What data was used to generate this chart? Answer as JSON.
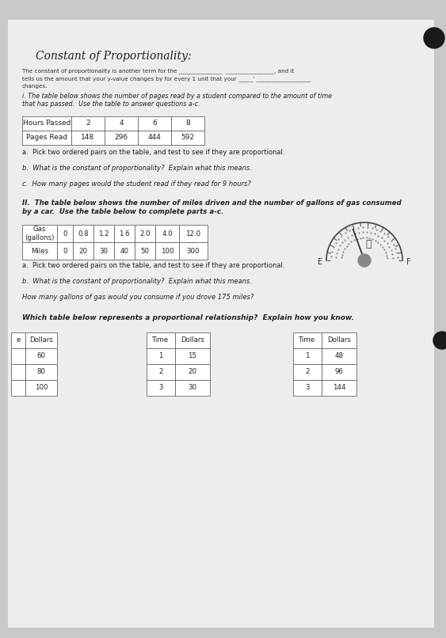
{
  "bg_color": "#c8c8c8",
  "paper_color": "#eeeded",
  "title": "Constant of Proportionality:",
  "sub1": "The constant of proportionality is another term for the _______________  _________________, and it",
  "sub2": "tells us the amount that your y-value changes by for every 1 unit that your _____’ ___________________",
  "sub3": "changes.",
  "sec1_line1": "i. The table below shows the number of pages read by a student compared to the amount of time",
  "sec1_line2": "that has passed.  Use the table to answer questions a-c.",
  "t1_r1": [
    "Hours Passed",
    "2",
    "4",
    "6",
    "8"
  ],
  "t1_r2": [
    "Pages Read",
    "148",
    "296",
    "444",
    "592"
  ],
  "q1a": "a.  Pick two ordered pairs on the table, and test to see if they are proportional.",
  "q1b": "b.  What is the constant of proportionality?  Explain what this means.",
  "q1c": "c.  How many pages would the student read if they read for 9 hours?",
  "sec2_line1": "II.  The table below shows the number of miles driven and the number of gallons of gas consumed",
  "sec2_line2": "by a car.  Use the table below to complete parts a-c.",
  "t2_r1": [
    "Gas\n(gallons)",
    "0",
    "0.8",
    "1.2",
    "1.6",
    "2.0",
    "4.0",
    "12.0"
  ],
  "t2_r2": [
    "Miles",
    "0",
    "20",
    "30",
    "40",
    "50",
    "100",
    "300"
  ],
  "q2a": "a.  Pick two ordered pairs on the table, and test to see if they are proportional.",
  "q2b": "b.  What is the constant of proportionality?  Explain what this means.",
  "q2c": "How many gallons of gas would you consume if you drove 175 miles?",
  "sec3": "Which table below represents a proportional relationship?  Explain how you know.",
  "tA_h": [
    "e",
    "Dollars"
  ],
  "tA_d": [
    [
      "",
      "60"
    ],
    [
      "",
      "80"
    ],
    [
      "",
      "100"
    ]
  ],
  "tB_h": [
    "Time",
    "Dollars"
  ],
  "tB_d": [
    [
      "1",
      "15"
    ],
    [
      "2",
      "20"
    ],
    [
      "3",
      "30"
    ]
  ],
  "tC_h": [
    "Time",
    "Dollars"
  ],
  "tC_d": [
    [
      "1",
      "48"
    ],
    [
      "2",
      "96"
    ],
    [
      "3",
      "144"
    ]
  ]
}
